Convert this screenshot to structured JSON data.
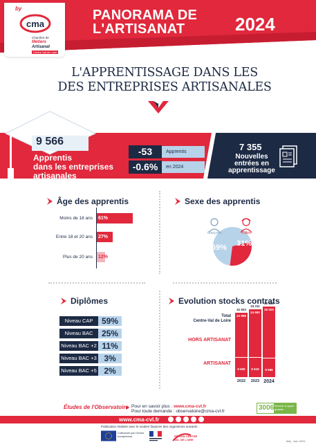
{
  "header": {
    "brand_by": "by",
    "logo_line1": "Chambre de",
    "logo_line2": "Métiers",
    "logo_line3": "Artisanat",
    "logo_line1b": "et de l'",
    "logo_region": "Centre-Val de Loire",
    "title_line1": "PANORAMA DE",
    "title_line2": "L'ARTISANAT",
    "year": "2024",
    "colors": {
      "red": "#e1283c",
      "navy": "#1d2a44",
      "light_blue": "#b7d3ea"
    }
  },
  "main_title": {
    "line1": "L'APPRENTISSAGE DANS LES",
    "line2": "DES ENTREPRISES ARTISANALES"
  },
  "banner": {
    "apprentis_count": "9 566",
    "apprentis_label_line1": "Apprentis",
    "apprentis_label_line2": "dans les entreprises",
    "apprentis_label_line3": "artisanales",
    "delta_count": "-53",
    "delta_count_label": "Apprentis",
    "delta_pct": "-0.6%",
    "delta_pct_label": "en 2024",
    "new_count": "7 355",
    "new_label_line1": "Nouvelles",
    "new_label_line2": "entrées en",
    "new_label_line3": "apprentissage",
    "icon": "document-stack-icon"
  },
  "age": {
    "title": "Âge des apprentis",
    "items": [
      {
        "label": "Moins de 18 ans",
        "value": "61%",
        "pct": 61
      },
      {
        "label": "Entre 18 et 20 ans",
        "value": "27%",
        "pct": 27
      },
      {
        "label": "Plus de 20 ans",
        "value": "12%",
        "pct": 12
      }
    ]
  },
  "sexe": {
    "title": "Sexe des apprentis",
    "garcons_label": "Garçons",
    "filles_label": "Filles",
    "garcons_value": "69%",
    "filles_value": "31%",
    "garcons_pct": 69,
    "filles_pct": 31
  },
  "diplomes": {
    "title": "Diplômes",
    "items": [
      {
        "label": "Niveau CAP",
        "value": "59%"
      },
      {
        "label": "Niveau BAC",
        "value": "25%"
      },
      {
        "label": "Niveau BAC +2",
        "value": "11%"
      },
      {
        "label": "Niveau BAC +3",
        "value": "3%"
      },
      {
        "label": "Niveau BAC +5",
        "value": "2%"
      }
    ]
  },
  "evolution": {
    "title": "Evolution stocks contrats",
    "label_total_line1": "Total",
    "label_total_line2": "Centre-Val de Loire",
    "label_hors": "HORS ARTISANAT",
    "label_artisanat": "ARTISANAT",
    "years": [
      {
        "year": "2022",
        "total": "32 603",
        "hors": "22 998",
        "artisanat": "9 605"
      },
      {
        "year": "2023",
        "total": "34 311",
        "hors": "24 692",
        "artisanat": "9 619"
      },
      {
        "year": "2024",
        "total": "35 569",
        "hors": "26 003",
        "artisanat": "9 566"
      }
    ]
  },
  "footer": {
    "studies": "Études de l'Observatoire",
    "more_prefix": "Pour en savoir plus : ",
    "more_url": "www.cma-cvl.fr",
    "demand": "Pour toute demande : observatoire@cma-cvl.fr",
    "badge_number": "3006",
    "badge_text": "Service & appel gratuits",
    "site": "www.cma-cvl.fr",
    "publication": "Publication réalisée avec le soutien financier des organismes suivants :",
    "eu_text": "Cofinancé par l'Union européenne",
    "region_text": "RÉGION CENTRE VAL DE LOIRE",
    "date_ref": "Màj - Juin 2024"
  }
}
